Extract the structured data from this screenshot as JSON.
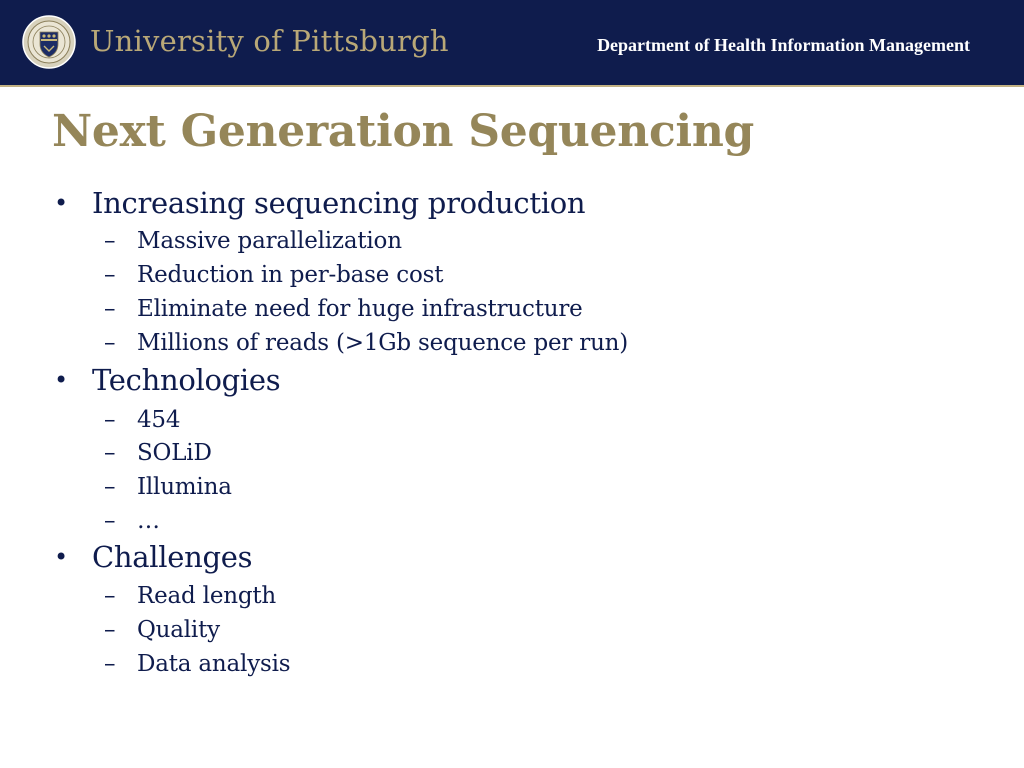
{
  "header": {
    "university": "University of Pittsburgh",
    "department": "Department of Health Information Management",
    "colors": {
      "band": "#0f1c4d",
      "gold": "#b9a877"
    },
    "seal_icon": "university-seal-icon"
  },
  "slide": {
    "title": "Next Generation Sequencing",
    "title_color": "#958659",
    "text_color": "#0f1c4d",
    "bullet_symbol": "•",
    "dash_symbol": "–",
    "sections": [
      {
        "heading": "Increasing sequencing production",
        "items": [
          "Massive parallelization",
          "Reduction in per-base cost",
          "Eliminate need for huge infrastructure",
          "Millions of reads (>1Gb sequence per run)"
        ]
      },
      {
        "heading": "Technologies",
        "items": [
          "454",
          "SOLiD",
          "Illumina",
          "…"
        ]
      },
      {
        "heading": "Challenges",
        "items": [
          "Read length",
          "Quality",
          "Data analysis"
        ]
      }
    ]
  }
}
